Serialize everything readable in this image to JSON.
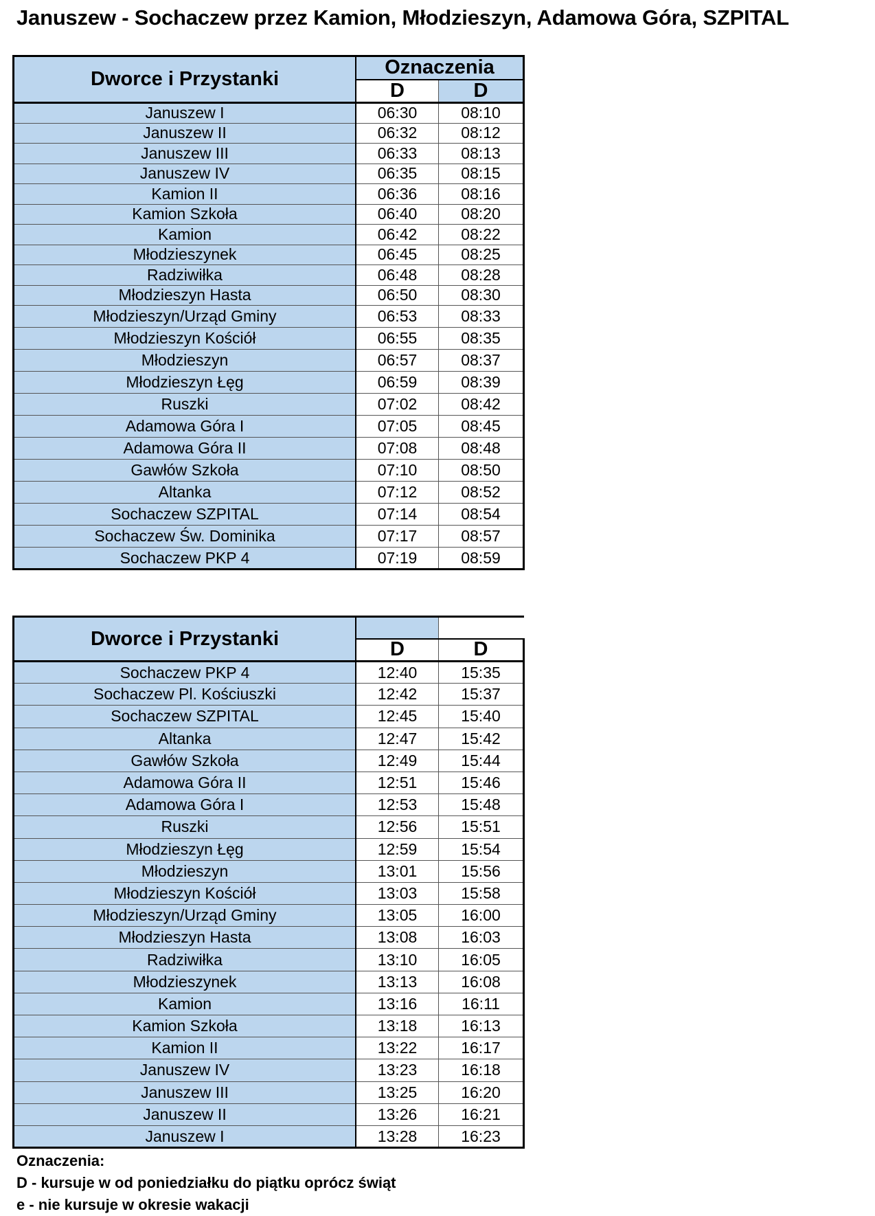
{
  "title": "Januszew - Sochaczew przez Kamion, Młodzieszyn, Adamowa Góra, SZPITAL",
  "colors": {
    "header_fill": "#bcd6ee",
    "time_fill": "#ffffff",
    "border": "#000000"
  },
  "table1": {
    "header_stops": "Dworce i Przystanki",
    "header_group": "Oznaczenia",
    "columns": [
      "D",
      "D"
    ],
    "rows": [
      {
        "stop": "Januszew I",
        "times": [
          "06:30",
          "08:10"
        ]
      },
      {
        "stop": "Januszew II",
        "times": [
          "06:32",
          "08:12"
        ]
      },
      {
        "stop": "Januszew III",
        "times": [
          "06:33",
          "08:13"
        ]
      },
      {
        "stop": "Januszew IV",
        "times": [
          "06:35",
          "08:15"
        ]
      },
      {
        "stop": "Kamion II",
        "times": [
          "06:36",
          "08:16"
        ]
      },
      {
        "stop": "Kamion Szkoła",
        "times": [
          "06:40",
          "08:20"
        ]
      },
      {
        "stop": "Kamion",
        "times": [
          "06:42",
          "08:22"
        ]
      },
      {
        "stop": "Młodzieszynek",
        "times": [
          "06:45",
          "08:25"
        ]
      },
      {
        "stop": "Radziwiłka",
        "times": [
          "06:48",
          "08:28"
        ]
      },
      {
        "stop": "Młodzieszyn Hasta",
        "times": [
          "06:50",
          "08:30"
        ]
      },
      {
        "stop": "Młodzieszyn/Urząd Gminy",
        "times": [
          "06:53",
          "08:33"
        ]
      },
      {
        "stop": "Młodzieszyn Kościół",
        "times": [
          "06:55",
          "08:35"
        ]
      },
      {
        "stop": "Młodzieszyn",
        "times": [
          "06:57",
          "08:37"
        ]
      },
      {
        "stop": "Młodzieszyn Łęg",
        "times": [
          "06:59",
          "08:39"
        ]
      },
      {
        "stop": "Ruszki",
        "times": [
          "07:02",
          "08:42"
        ]
      },
      {
        "stop": "Adamowa Góra I",
        "times": [
          "07:05",
          "08:45"
        ]
      },
      {
        "stop": "Adamowa Góra II",
        "times": [
          "07:08",
          "08:48"
        ]
      },
      {
        "stop": "Gawłów Szkoła",
        "times": [
          "07:10",
          "08:50"
        ]
      },
      {
        "stop": "Altanka",
        "times": [
          "07:12",
          "08:52"
        ]
      },
      {
        "stop": "Sochaczew SZPITAL",
        "times": [
          "07:14",
          "08:54"
        ]
      },
      {
        "stop": "Sochaczew Św. Dominika",
        "times": [
          "07:17",
          "08:57"
        ]
      },
      {
        "stop": "Sochaczew PKP 4",
        "times": [
          "07:19",
          "08:59"
        ]
      }
    ]
  },
  "table2": {
    "header_stops": "Dworce i Przystanki",
    "columns": [
      "D",
      "D"
    ],
    "rows": [
      {
        "stop": "Sochaczew PKP 4",
        "times": [
          "12:40",
          "15:35"
        ]
      },
      {
        "stop": "Sochaczew Pl. Kościuszki",
        "times": [
          "12:42",
          "15:37"
        ]
      },
      {
        "stop": "Sochaczew SZPITAL",
        "times": [
          "12:45",
          "15:40"
        ]
      },
      {
        "stop": "Altanka",
        "times": [
          "12:47",
          "15:42"
        ]
      },
      {
        "stop": "Gawłów Szkoła",
        "times": [
          "12:49",
          "15:44"
        ]
      },
      {
        "stop": "Adamowa Góra II",
        "times": [
          "12:51",
          "15:46"
        ]
      },
      {
        "stop": "Adamowa Góra I",
        "times": [
          "12:53",
          "15:48"
        ]
      },
      {
        "stop": "Ruszki",
        "times": [
          "12:56",
          "15:51"
        ]
      },
      {
        "stop": "Młodzieszyn Łęg",
        "times": [
          "12:59",
          "15:54"
        ]
      },
      {
        "stop": "Młodzieszyn",
        "times": [
          "13:01",
          "15:56"
        ]
      },
      {
        "stop": "Młodzieszyn Kościół",
        "times": [
          "13:03",
          "15:58"
        ]
      },
      {
        "stop": "Młodzieszyn/Urząd Gminy",
        "times": [
          "13:05",
          "16:00"
        ]
      },
      {
        "stop": "Młodzieszyn Hasta",
        "times": [
          "13:08",
          "16:03"
        ]
      },
      {
        "stop": "Radziwiłka",
        "times": [
          "13:10",
          "16:05"
        ]
      },
      {
        "stop": "Młodzieszynek",
        "times": [
          "13:13",
          "16:08"
        ]
      },
      {
        "stop": "Kamion",
        "times": [
          "13:16",
          "16:11"
        ]
      },
      {
        "stop": "Kamion Szkoła",
        "times": [
          "13:18",
          "16:13"
        ]
      },
      {
        "stop": "Kamion II",
        "times": [
          "13:22",
          "16:17"
        ]
      },
      {
        "stop": "Januszew IV",
        "times": [
          "13:23",
          "16:18"
        ]
      },
      {
        "stop": "Januszew III",
        "times": [
          "13:25",
          "16:20"
        ]
      },
      {
        "stop": "Januszew II",
        "times": [
          "13:26",
          "16:21"
        ]
      },
      {
        "stop": "Januszew I",
        "times": [
          "13:28",
          "16:23"
        ]
      }
    ]
  },
  "legend": {
    "title": "Oznaczenia:",
    "items": [
      "D - kursuje w  od poniedziałku do piątku oprócz  świąt",
      "e - nie kursuje w okresie wakacji"
    ]
  }
}
